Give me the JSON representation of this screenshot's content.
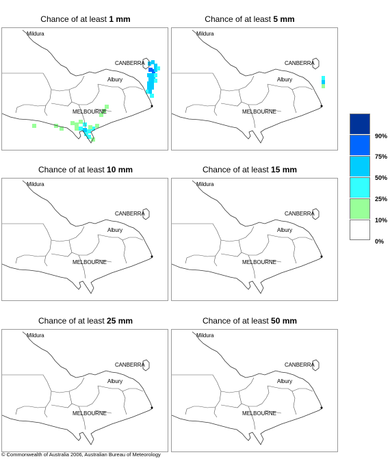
{
  "panels": [
    {
      "title_prefix": "Chance of at least ",
      "amount": "1 mm"
    },
    {
      "title_prefix": "Chance of at least ",
      "amount": "5 mm"
    },
    {
      "title_prefix": "Chance of at least ",
      "amount": "10 mm"
    },
    {
      "title_prefix": "Chance of at least ",
      "amount": "15 mm"
    },
    {
      "title_prefix": "Chance of at least ",
      "amount": "25 mm"
    },
    {
      "title_prefix": "Chance of at least ",
      "amount": "50 mm"
    }
  ],
  "places": {
    "mildura": "Mildura",
    "canberra": "CANBERRA",
    "albury": "Albury",
    "melbourne": "MELBOURNE"
  },
  "legend": {
    "labels": [
      "90%",
      "75%",
      "50%",
      "25%",
      "10%",
      "0%"
    ],
    "colors": [
      "#003399",
      "#0066ff",
      "#00ccff",
      "#33ffff",
      "#99ff99",
      "#ffffff"
    ]
  },
  "colors": {
    "band_10_25": "#99ff99",
    "band_25_50": "#33ffff",
    "band_50_75": "#00ccff",
    "band_75_90": "#0066ff"
  },
  "copyright": "© Commonwealth of Australia 2006, Australian Bureau of Meteorology"
}
